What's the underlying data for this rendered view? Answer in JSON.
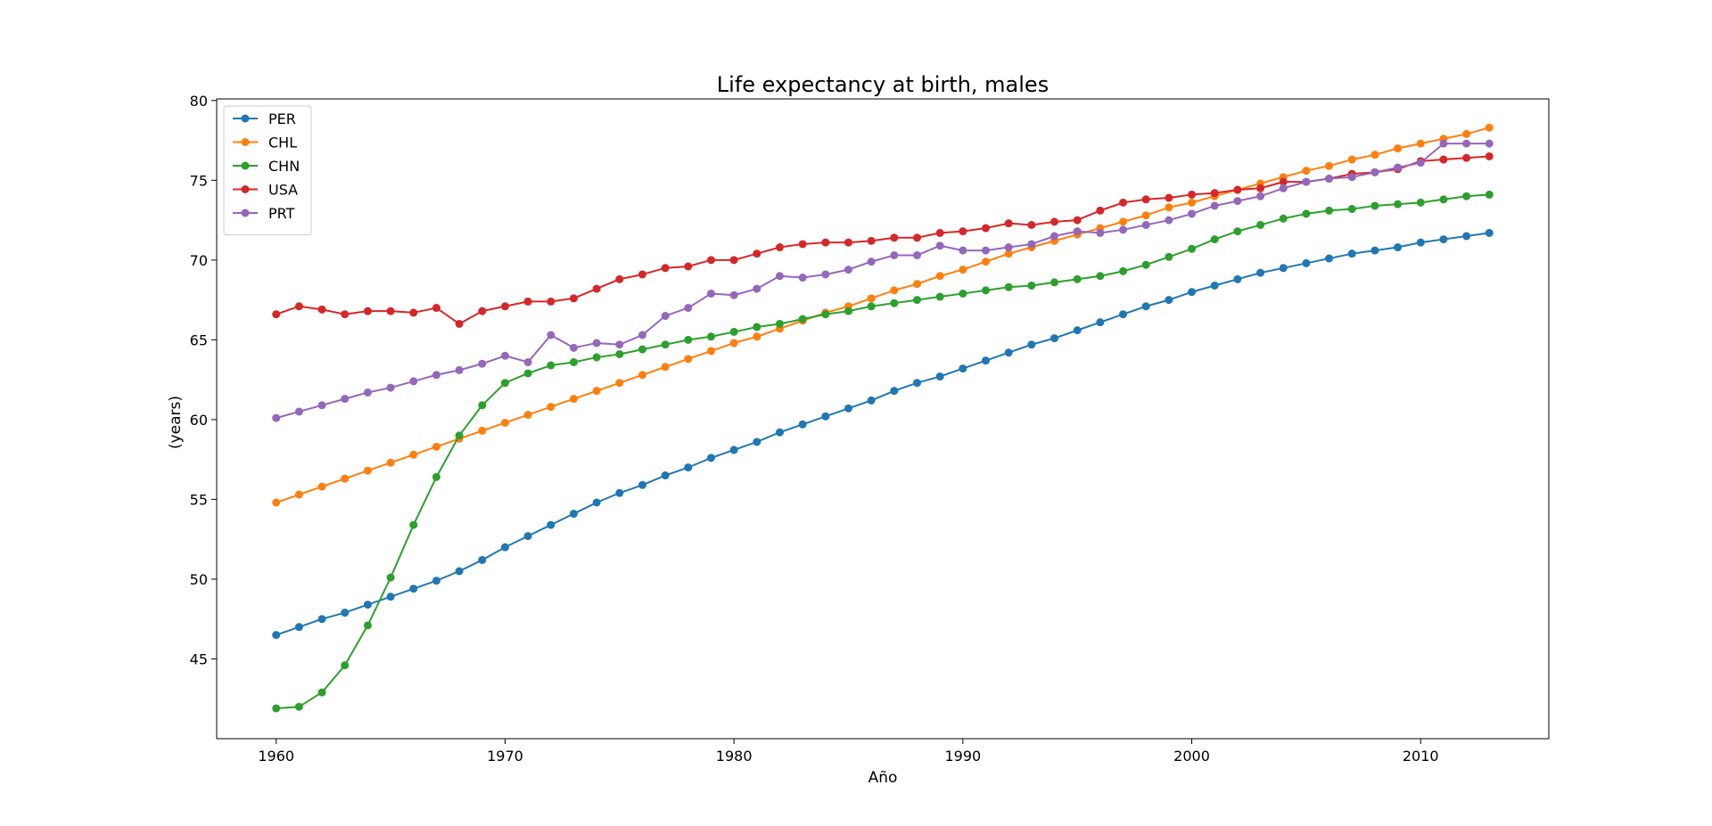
{
  "chart_data": {
    "type": "line",
    "title": "Life expectancy at birth, males",
    "xlabel": "Año",
    "ylabel": "(years)",
    "xlim": [
      1957.4,
      2015.6
    ],
    "ylim": [
      40.0,
      80.1
    ],
    "xticks": [
      1960,
      1970,
      1980,
      1990,
      2000,
      2010
    ],
    "yticks": [
      45,
      50,
      55,
      60,
      65,
      70,
      75,
      80
    ],
    "grid": false,
    "legend_position": "top-left",
    "x": [
      1960,
      1961,
      1962,
      1963,
      1964,
      1965,
      1966,
      1967,
      1968,
      1969,
      1970,
      1971,
      1972,
      1973,
      1974,
      1975,
      1976,
      1977,
      1978,
      1979,
      1980,
      1981,
      1982,
      1983,
      1984,
      1985,
      1986,
      1987,
      1988,
      1989,
      1990,
      1991,
      1992,
      1993,
      1994,
      1995,
      1996,
      1997,
      1998,
      1999,
      2000,
      2001,
      2002,
      2003,
      2004,
      2005,
      2006,
      2007,
      2008,
      2009,
      2010,
      2011,
      2012,
      2013
    ],
    "series": [
      {
        "name": "PER",
        "color": "#1f77b4",
        "values": [
          46.5,
          47.0,
          47.5,
          47.9,
          48.4,
          48.9,
          49.4,
          49.9,
          50.5,
          51.2,
          52.0,
          52.7,
          53.4,
          54.1,
          54.8,
          55.4,
          55.9,
          56.5,
          57.0,
          57.6,
          58.1,
          58.6,
          59.2,
          59.7,
          60.2,
          60.7,
          61.2,
          61.8,
          62.3,
          62.7,
          63.2,
          63.7,
          64.2,
          64.7,
          65.1,
          65.6,
          66.1,
          66.6,
          67.1,
          67.5,
          68.0,
          68.4,
          68.8,
          69.2,
          69.5,
          69.8,
          70.1,
          70.4,
          70.6,
          70.8,
          71.1,
          71.3,
          71.5,
          71.7
        ]
      },
      {
        "name": "CHL",
        "color": "#ff7f0e",
        "values": [
          54.8,
          55.3,
          55.8,
          56.3,
          56.8,
          57.3,
          57.8,
          58.3,
          58.8,
          59.3,
          59.8,
          60.3,
          60.8,
          61.3,
          61.8,
          62.3,
          62.8,
          63.3,
          63.8,
          64.3,
          64.8,
          65.2,
          65.7,
          66.2,
          66.7,
          67.1,
          67.6,
          68.1,
          68.5,
          69.0,
          69.4,
          69.9,
          70.4,
          70.8,
          71.2,
          71.6,
          72.0,
          72.4,
          72.8,
          73.3,
          73.6,
          74.0,
          74.4,
          74.8,
          75.2,
          75.6,
          75.9,
          76.3,
          76.6,
          77.0,
          77.3,
          77.6,
          77.9,
          78.3
        ]
      },
      {
        "name": "CHN",
        "color": "#2ca02c",
        "values": [
          41.9,
          42.0,
          42.9,
          44.6,
          47.1,
          50.1,
          53.4,
          56.4,
          59.0,
          60.9,
          62.3,
          62.9,
          63.4,
          63.6,
          63.9,
          64.1,
          64.4,
          64.7,
          65.0,
          65.2,
          65.5,
          65.8,
          66.0,
          66.3,
          66.6,
          66.8,
          67.1,
          67.3,
          67.5,
          67.7,
          67.9,
          68.1,
          68.3,
          68.4,
          68.6,
          68.8,
          69.0,
          69.3,
          69.7,
          70.2,
          70.7,
          71.3,
          71.8,
          72.2,
          72.6,
          72.9,
          73.1,
          73.2,
          73.4,
          73.5,
          73.6,
          73.8,
          74.0,
          74.1
        ]
      },
      {
        "name": "USA",
        "color": "#d62728",
        "values": [
          66.6,
          67.1,
          66.9,
          66.6,
          66.8,
          66.8,
          66.7,
          67.0,
          66.0,
          66.8,
          67.1,
          67.4,
          67.4,
          67.6,
          68.2,
          68.8,
          69.1,
          69.5,
          69.6,
          70.0,
          70.0,
          70.4,
          70.8,
          71.0,
          71.1,
          71.1,
          71.2,
          71.4,
          71.4,
          71.7,
          71.8,
          72.0,
          72.3,
          72.2,
          72.4,
          72.5,
          73.1,
          73.6,
          73.8,
          73.9,
          74.1,
          74.2,
          74.4,
          74.5,
          74.9,
          74.9,
          75.1,
          75.4,
          75.5,
          75.7,
          76.2,
          76.3,
          76.4,
          76.5
        ]
      },
      {
        "name": "PRT",
        "color": "#9467bd",
        "values": [
          60.1,
          60.5,
          60.9,
          61.3,
          61.7,
          62.0,
          62.4,
          62.8,
          63.1,
          63.5,
          64.0,
          63.6,
          65.3,
          64.5,
          64.8,
          64.7,
          65.3,
          66.5,
          67.0,
          67.9,
          67.8,
          68.2,
          69.0,
          68.9,
          69.1,
          69.4,
          69.9,
          70.3,
          70.3,
          70.9,
          70.6,
          70.6,
          70.8,
          71.0,
          71.5,
          71.8,
          71.7,
          71.9,
          72.2,
          72.5,
          72.9,
          73.4,
          73.7,
          74.0,
          74.5,
          74.9,
          75.1,
          75.2,
          75.5,
          75.8,
          76.1,
          77.3,
          77.3,
          77.3
        ]
      }
    ]
  }
}
